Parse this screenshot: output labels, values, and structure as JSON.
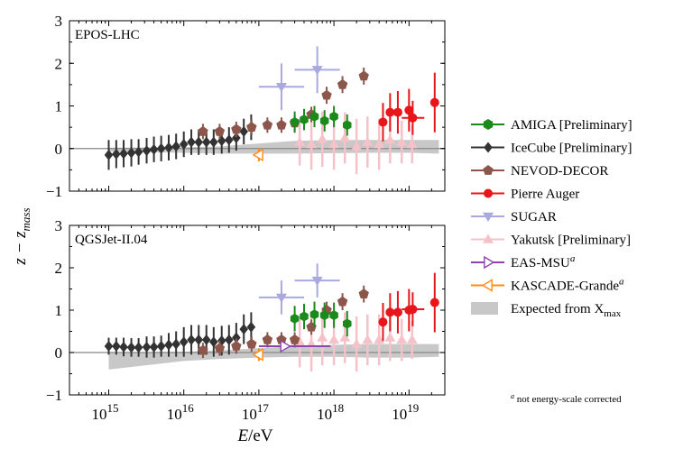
{
  "figure": {
    "xlabel_italic": "E",
    "xlabel_unit": "/eV",
    "ylabel_main": "z − z",
    "ylabel_sub": "mass",
    "footnote_sup": "a",
    "footnote_text": " not energy-scale corrected"
  },
  "legend": [
    {
      "key": "amiga",
      "label": "AMIGA [Preliminary]",
      "marker": "hexagon",
      "color": "#1a8a1a"
    },
    {
      "key": "icecube",
      "label": "IceCube [Preliminary]",
      "marker": "diamond",
      "color": "#333333"
    },
    {
      "key": "nevod",
      "label": "NEVOD-DECOR",
      "marker": "pentagon",
      "color": "#8c564b"
    },
    {
      "key": "auger",
      "label": "Pierre Auger",
      "marker": "circle",
      "color": "#e8161b"
    },
    {
      "key": "sugar",
      "label": "SUGAR",
      "marker": "triangle-down",
      "color": "#a9a9e0"
    },
    {
      "key": "yakutsk",
      "label": "Yakutsk [Preliminary]",
      "marker": "triangle-up",
      "color": "#f4c2c8"
    },
    {
      "key": "easmsu",
      "label": "EAS-MSU",
      "sup": "a",
      "marker": "triangle-right-open",
      "color": "#8e44ad"
    },
    {
      "key": "kascade",
      "label": "KASCADE-Grande",
      "sup": "a",
      "marker": "triangle-left-open",
      "color": "#ff8c1a"
    },
    {
      "key": "expected",
      "label": "Expected from X",
      "sub": "max",
      "marker": "band",
      "color": "#c8c8c8"
    }
  ],
  "chart_data": [
    {
      "type": "scatter",
      "panel_label": "EPOS-LHC",
      "xscale": "log",
      "xlim": [
        300000000000000.0,
        3e+19
      ],
      "ylim": [
        -1,
        3
      ],
      "x_tick_labels": [
        "10",
        "10",
        "10",
        "10",
        "10"
      ],
      "x_tick_exps": [
        "15",
        "16",
        "17",
        "18",
        "19"
      ],
      "x_ticks": [
        1000000000000000.0,
        1e+16,
        1e+17,
        1e+18,
        1e+19
      ],
      "y_ticks": [
        -1,
        0,
        1,
        2,
        3
      ],
      "y_tick_labels": [
        "−1",
        "0",
        "1",
        "2",
        "3"
      ],
      "band": {
        "x": [
          1000000000000000.0,
          1e+16,
          3e+16,
          1e+17,
          3e+17,
          1e+18,
          3e+18,
          1e+19,
          2.5e+19
        ],
        "lower": [
          -0.07,
          -0.1,
          -0.12,
          -0.12,
          -0.12,
          -0.11,
          -0.1,
          -0.1,
          -0.12
        ],
        "upper": [
          0.02,
          0.03,
          0.05,
          0.12,
          0.18,
          0.2,
          0.2,
          0.2,
          0.2
        ]
      },
      "series": [
        {
          "key": "yakutsk",
          "x": [
            3.5e+17,
            5e+17,
            7e+17,
            1e+18,
            1.4e+18,
            2e+18,
            2.8e+18,
            4e+18,
            5.6e+18,
            8e+18,
            1.1e+19
          ],
          "y": [
            0.15,
            0.1,
            0.22,
            0.1,
            0.25,
            0.05,
            0.15,
            0.1,
            0.2,
            0.15,
            0.1
          ],
          "yerr": [
            0.55,
            0.6,
            0.65,
            0.6,
            0.6,
            0.65,
            0.6,
            0.6,
            0.55,
            0.5,
            0.45
          ]
        },
        {
          "key": "icecube",
          "x": [
            1000000000000000.0,
            1260000000000000.0,
            1580000000000000.0,
            2000000000000000.0,
            2500000000000000.0,
            3200000000000000.0,
            4000000000000000.0,
            5000000000000000.0,
            6300000000000000.0,
            7900000000000000.0,
            1e+16,
            1.26e+16,
            1.58e+16,
            2e+16,
            2.5e+16,
            3.2e+16,
            4e+16,
            5e+16,
            6.3e+16,
            7.9e+16
          ],
          "y": [
            -0.15,
            -0.13,
            -0.12,
            -0.1,
            -0.08,
            -0.05,
            -0.02,
            0.0,
            0.02,
            0.05,
            0.1,
            0.15,
            0.15,
            0.15,
            0.15,
            0.18,
            0.2,
            0.25,
            0.4,
            0.5
          ],
          "yerr": [
            0.35,
            0.33,
            0.32,
            0.32,
            0.3,
            0.3,
            0.3,
            0.3,
            0.3,
            0.3,
            0.3,
            0.3,
            0.3,
            0.3,
            0.3,
            0.3,
            0.3,
            0.3,
            0.3,
            0.3
          ]
        },
        {
          "key": "nevod",
          "x": [
            1.8e+16,
            3e+16,
            5e+16,
            8e+16,
            1.3e+17,
            2e+17,
            3e+17,
            5e+17,
            8e+17,
            1.3e+18,
            2.5e+18
          ],
          "y": [
            0.4,
            0.4,
            0.45,
            0.5,
            0.55,
            0.55,
            0.6,
            0.8,
            1.25,
            1.5,
            1.7
          ],
          "yerr": [
            0.18,
            0.18,
            0.18,
            0.18,
            0.18,
            0.18,
            0.18,
            0.18,
            0.2,
            0.2,
            0.2
          ]
        },
        {
          "key": "amiga",
          "x": [
            3e+17,
            4e+17,
            5.5e+17,
            7.5e+17,
            1e+18,
            1.5e+18
          ],
          "y": [
            0.62,
            0.68,
            0.75,
            0.65,
            0.75,
            0.55
          ],
          "yerr": [
            0.25,
            0.25,
            0.25,
            0.25,
            0.25,
            0.25
          ]
        },
        {
          "key": "sugar",
          "x": [
            2e+17,
            6e+17
          ],
          "y": [
            1.45,
            1.85
          ],
          "yerr": [
            0.55,
            0.55
          ],
          "xlo": [
            1e+17,
            3e+17
          ],
          "xhi": [
            4e+17,
            1.2e+18
          ]
        },
        {
          "key": "auger",
          "x": [
            4.5e+18,
            5.6e+18,
            7.1e+18,
            1e+19,
            1.12e+19,
            2.2e+19
          ],
          "y": [
            0.62,
            0.85,
            0.85,
            0.9,
            0.72,
            1.08
          ],
          "yerr": [
            0.45,
            0.45,
            0.5,
            0.5,
            0.4,
            0.7
          ],
          "xlo": [
            null,
            null,
            null,
            null,
            8e+18,
            null
          ],
          "xhi": [
            null,
            null,
            null,
            null,
            1.6e+19,
            null
          ]
        },
        {
          "key": "kascade",
          "x": [
            1e+17
          ],
          "y": [
            -0.15
          ],
          "yerr": [
            0.15
          ]
        }
      ]
    },
    {
      "type": "scatter",
      "panel_label": "QGSJet-II.04",
      "xscale": "log",
      "xlim": [
        300000000000000.0,
        3e+19
      ],
      "ylim": [
        -1,
        3
      ],
      "x_tick_labels": [
        "10",
        "10",
        "10",
        "10",
        "10"
      ],
      "x_tick_exps": [
        "15",
        "16",
        "17",
        "18",
        "19"
      ],
      "x_ticks": [
        1000000000000000.0,
        1e+16,
        1e+17,
        1e+18,
        1e+19
      ],
      "y_ticks": [
        -1,
        0,
        1,
        2,
        3
      ],
      "y_tick_labels": [
        "−1",
        "0",
        "1",
        "2",
        "3"
      ],
      "band": {
        "x": [
          1000000000000000.0,
          1e+16,
          3e+16,
          1e+17,
          3e+17,
          1e+18,
          3e+18,
          1e+19,
          2.5e+19
        ],
        "lower": [
          -0.4,
          -0.2,
          -0.15,
          -0.12,
          -0.1,
          -0.1,
          -0.12,
          -0.12,
          -0.1
        ],
        "upper": [
          0.0,
          0.02,
          0.05,
          0.1,
          0.15,
          0.18,
          0.2,
          0.2,
          0.2
        ]
      },
      "series": [
        {
          "key": "yakutsk",
          "x": [
            3.5e+17,
            5e+17,
            7e+17,
            1e+18,
            1.4e+18,
            2e+18,
            2.8e+18,
            4e+18,
            5.6e+18,
            8e+18,
            1.1e+19
          ],
          "y": [
            0.25,
            0.2,
            0.35,
            0.3,
            0.35,
            0.2,
            0.3,
            0.3,
            0.35,
            0.3,
            0.3
          ],
          "yerr": [
            0.6,
            0.65,
            0.65,
            0.6,
            0.6,
            0.65,
            0.6,
            0.6,
            0.55,
            0.5,
            0.45
          ]
        },
        {
          "key": "icecube",
          "x": [
            1000000000000000.0,
            1260000000000000.0,
            1580000000000000.0,
            2000000000000000.0,
            2500000000000000.0,
            3200000000000000.0,
            4000000000000000.0,
            5000000000000000.0,
            6300000000000000.0,
            7900000000000000.0,
            1e+16,
            1.26e+16,
            1.58e+16,
            2e+16,
            2.5e+16,
            3.2e+16,
            4e+16,
            5e+16,
            6.3e+16,
            7.9e+16
          ],
          "y": [
            0.15,
            0.15,
            0.13,
            0.12,
            0.12,
            0.13,
            0.13,
            0.15,
            0.18,
            0.2,
            0.25,
            0.3,
            0.3,
            0.3,
            0.25,
            0.28,
            0.3,
            0.35,
            0.55,
            0.6
          ],
          "yerr": [
            0.2,
            0.2,
            0.22,
            0.22,
            0.22,
            0.25,
            0.25,
            0.25,
            0.28,
            0.3,
            0.35,
            0.35,
            0.35,
            0.35,
            0.35,
            0.35,
            0.35,
            0.35,
            0.35,
            0.35
          ]
        },
        {
          "key": "nevod",
          "x": [
            1.8e+16,
            3e+16,
            5e+16,
            8e+16,
            1.3e+17,
            2e+17,
            3e+17,
            5e+17,
            8e+17,
            1.3e+18,
            2.5e+18
          ],
          "y": [
            0.05,
            0.1,
            0.15,
            0.2,
            0.3,
            0.3,
            0.3,
            0.6,
            1.0,
            1.2,
            1.38
          ],
          "yerr": [
            0.18,
            0.18,
            0.18,
            0.18,
            0.18,
            0.18,
            0.18,
            0.18,
            0.2,
            0.2,
            0.2
          ]
        },
        {
          "key": "amiga",
          "x": [
            3e+17,
            4e+17,
            5.5e+17,
            7.5e+17,
            1e+18,
            1.5e+18
          ],
          "y": [
            0.8,
            0.85,
            0.9,
            0.88,
            0.88,
            0.68
          ],
          "yerr": [
            0.3,
            0.3,
            0.3,
            0.3,
            0.3,
            0.3
          ]
        },
        {
          "key": "sugar",
          "x": [
            2e+17,
            6e+17
          ],
          "y": [
            1.3,
            1.7
          ],
          "yerr": [
            0.4,
            0.4
          ],
          "xlo": [
            1e+17,
            3e+17
          ],
          "xhi": [
            4e+17,
            1.2e+18
          ]
        },
        {
          "key": "auger",
          "x": [
            4.5e+18,
            5.6e+18,
            7.1e+18,
            1e+19,
            1.12e+19,
            2.2e+19
          ],
          "y": [
            0.72,
            0.95,
            0.95,
            1.0,
            1.02,
            1.18
          ],
          "yerr": [
            0.45,
            0.45,
            0.5,
            0.5,
            0.4,
            0.7
          ],
          "xlo": [
            null,
            null,
            null,
            null,
            8e+18,
            null
          ],
          "xhi": [
            null,
            null,
            null,
            null,
            1.6e+19,
            null
          ]
        },
        {
          "key": "easmsu",
          "x": [
            2.2e+17
          ],
          "y": [
            0.15
          ],
          "yerr": [
            0.0
          ],
          "xlo": [
            1e+17
          ],
          "xhi": [
            9e+17
          ]
        },
        {
          "key": "kascade",
          "x": [
            1e+17
          ],
          "y": [
            -0.05
          ],
          "yerr": [
            0.15
          ]
        }
      ]
    }
  ]
}
